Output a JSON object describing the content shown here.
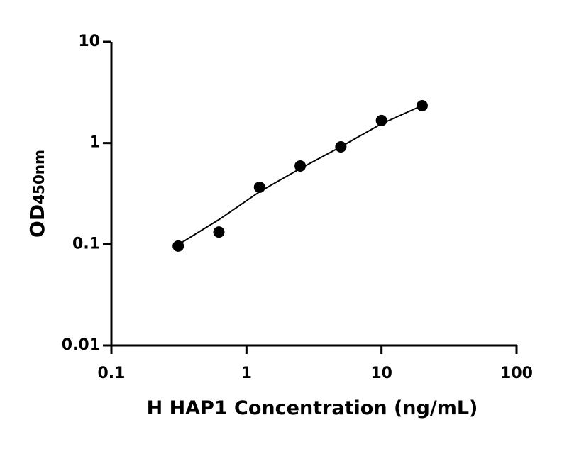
{
  "chart_data": {
    "type": "scatter",
    "x_label": "H HAP1 Concentration (ng/mL)",
    "y_label": "OD",
    "y_label_subscript": "450nm",
    "x_scale": "log",
    "y_scale": "log",
    "xlim": [
      0.1,
      100
    ],
    "xticks": [
      0.1,
      1,
      10,
      100
    ],
    "ylim": [
      0.01,
      10
    ],
    "yticks": [
      0.01,
      0.1,
      1,
      10
    ],
    "x": [
      0.3125,
      0.625,
      1.25,
      2.5,
      5,
      10,
      20
    ],
    "series": [
      {
        "color": "#000000",
        "values": [
          0.096,
          0.132,
          0.366,
          0.594,
          0.918,
          1.67,
          2.34
        ]
      },
      {
        "color": "#000000",
        "style": "line",
        "values": [
          0.099,
          0.175,
          0.33,
          0.56,
          0.92,
          1.55,
          2.35
        ]
      }
    ]
  }
}
